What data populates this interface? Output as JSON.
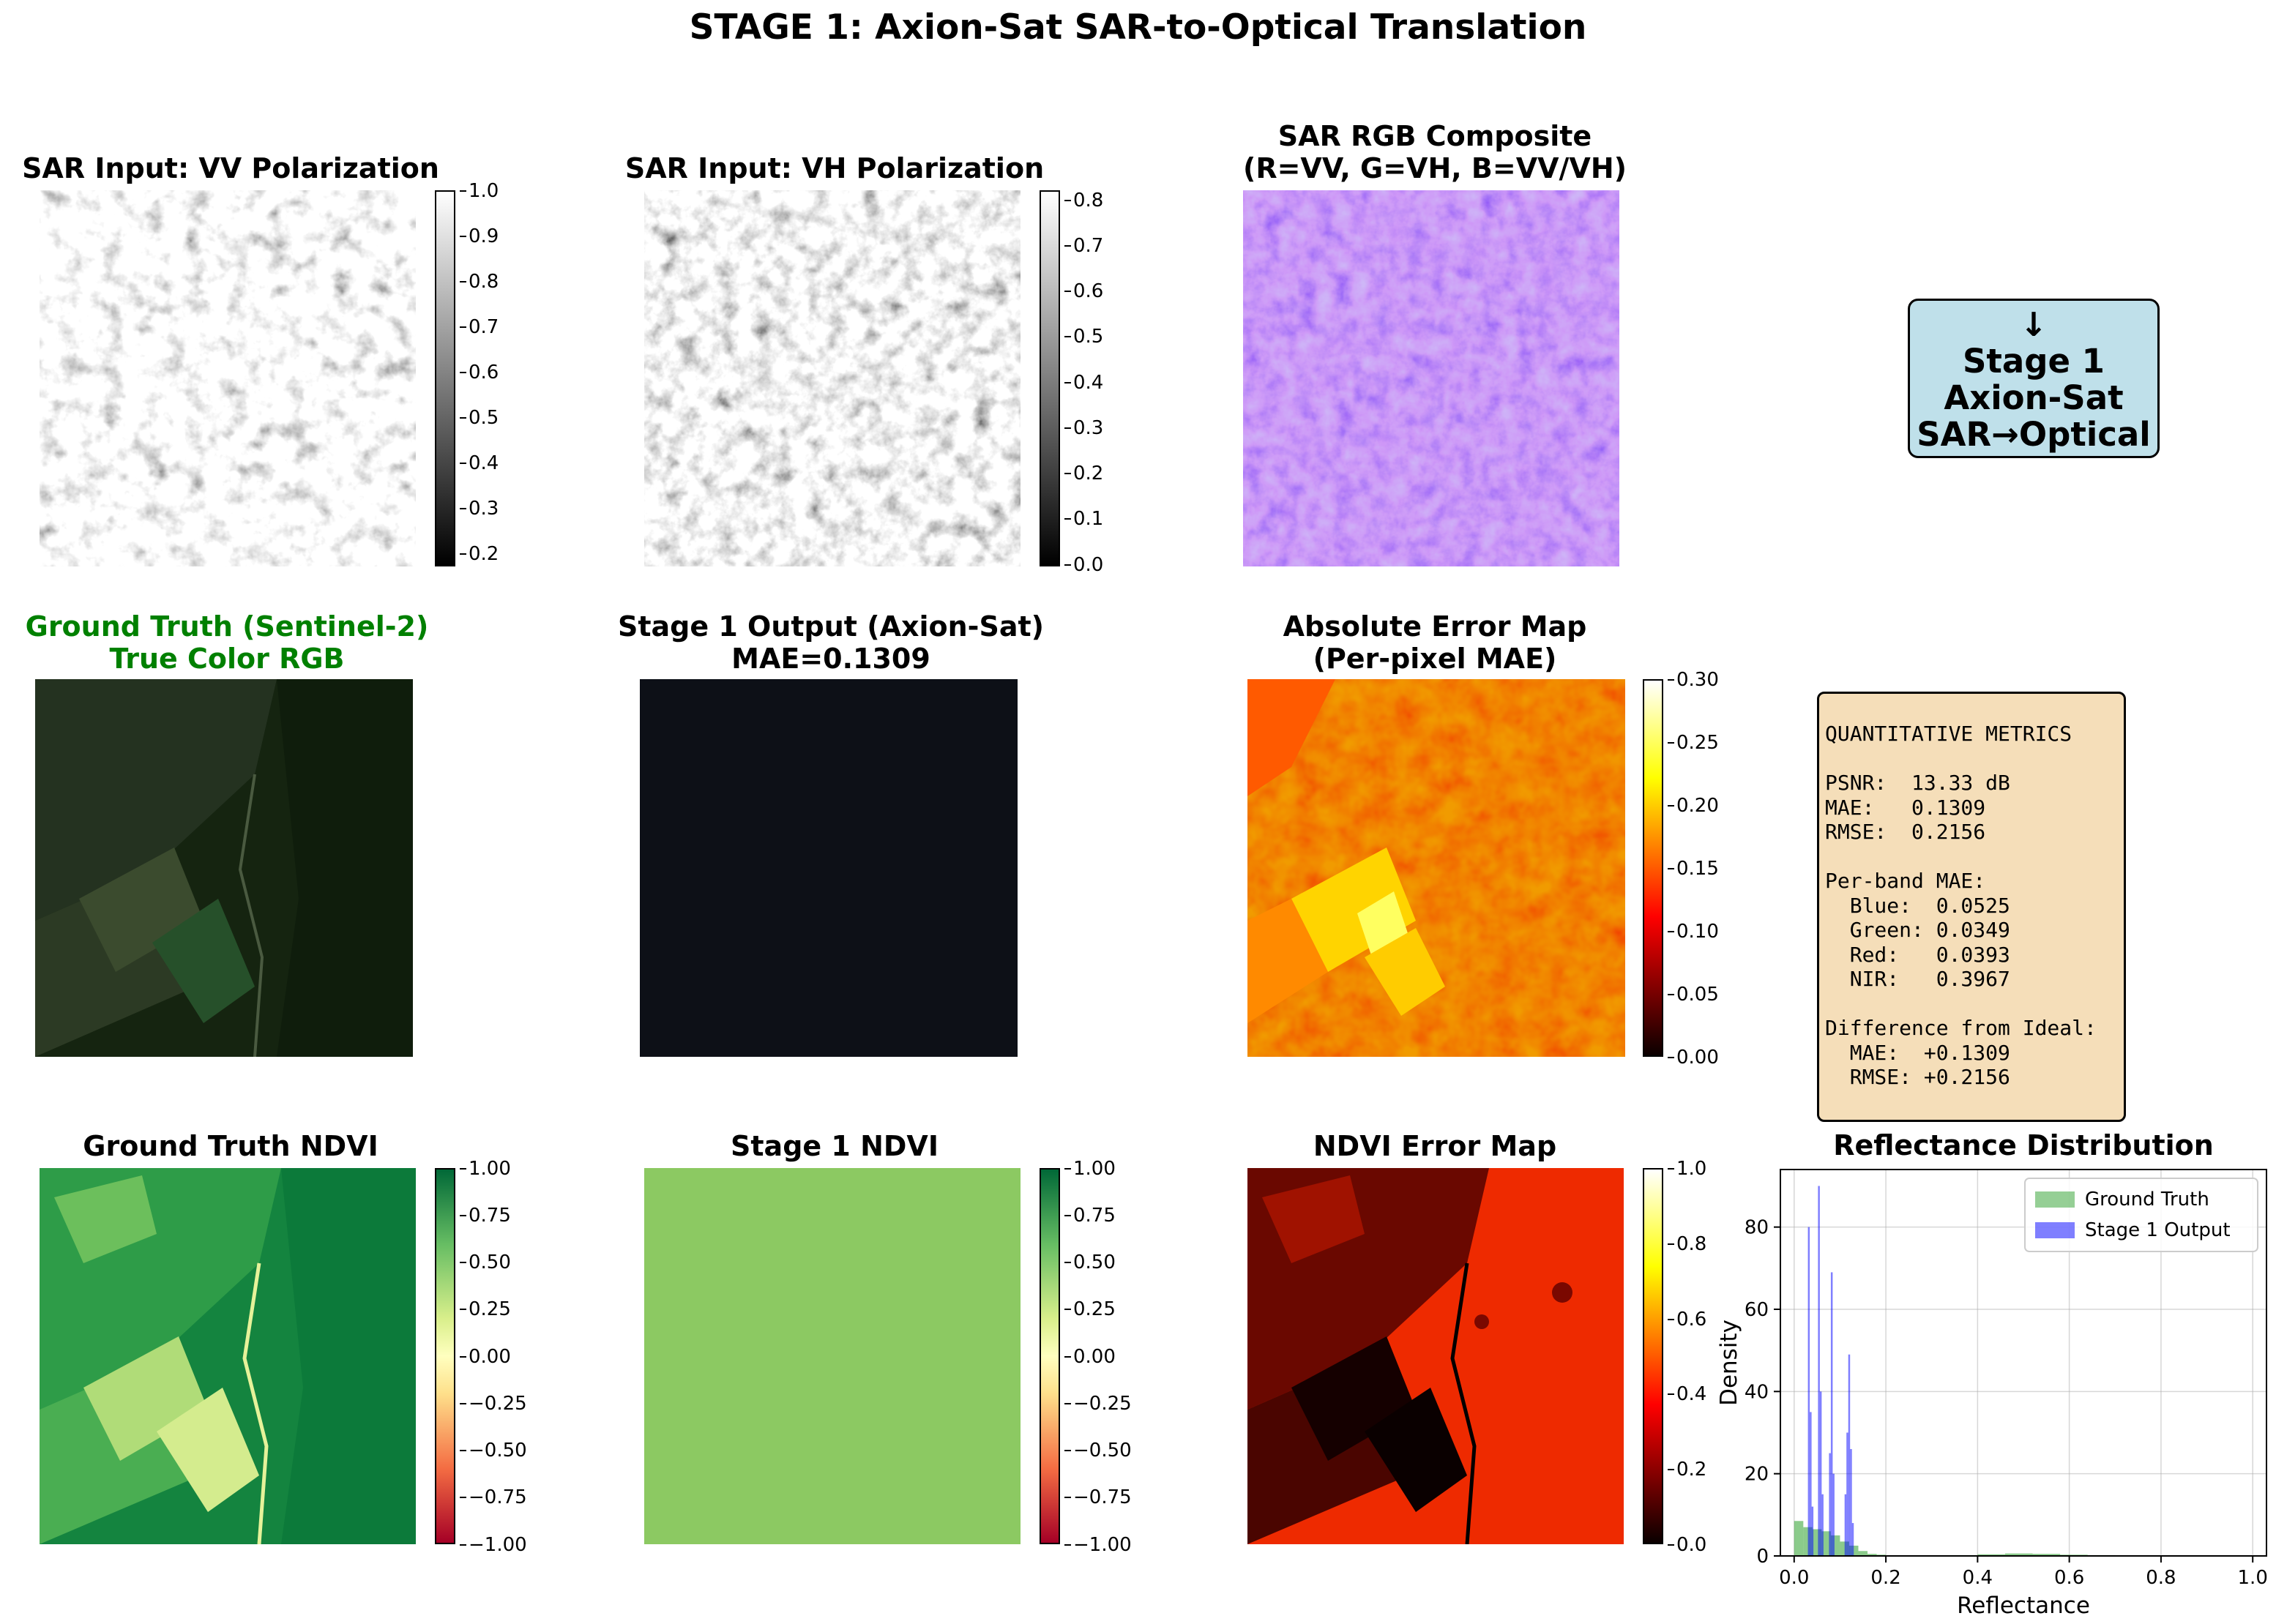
{
  "suptitle": "STAGE 1: Axion-Sat SAR-to-Optical Translation",
  "panels": {
    "vv": {
      "title": "SAR Input: VV Polarization",
      "colorbar_ticks": [
        "1.0",
        "0.9",
        "0.8",
        "0.7",
        "0.6",
        "0.5",
        "0.4",
        "0.3",
        "0.2"
      ],
      "colormap": "gray"
    },
    "vh": {
      "title": "SAR Input: VH Polarization",
      "colorbar_ticks": [
        "0.8",
        "0.7",
        "0.6",
        "0.5",
        "0.4",
        "0.3",
        "0.2",
        "0.1",
        "0.0"
      ],
      "colormap": "gray"
    },
    "rgb": {
      "title_line1": "SAR RGB Composite",
      "title_line2": "(R=VV, G=VH, B=VV/VH)"
    },
    "stage_box": {
      "line1": "↓",
      "line2": "Stage 1",
      "line3": "Axion-Sat",
      "line4": "SAR→Optical",
      "fill": "#bfe0ea"
    },
    "gt": {
      "title_line1": "Ground Truth (Sentinel-2)",
      "title_line2": "True Color RGB",
      "title_color": "#008000"
    },
    "stage1": {
      "title_line1": "Stage 1 Output (Axion-Sat)",
      "title_line2": "MAE=0.1309",
      "fill": "#0d1017"
    },
    "abs_err": {
      "title_line1": "Absolute Error Map",
      "title_line2": "(Per-pixel MAE)",
      "colorbar_ticks": [
        "0.30",
        "0.25",
        "0.20",
        "0.15",
        "0.10",
        "0.05",
        "0.00"
      ],
      "colormap": "hot"
    },
    "metrics": {
      "lines": [
        "QUANTITATIVE METRICS",
        "",
        "PSNR:  13.33 dB",
        "MAE:   0.1309",
        "RMSE:  0.2156",
        "",
        "Per-band MAE:",
        "  Blue:  0.0525",
        "  Green: 0.0349",
        "  Red:   0.0393",
        "  NIR:   0.3967",
        "",
        "Difference from Ideal:",
        "  MAE:  +0.1309",
        "  RMSE: +0.2156"
      ],
      "fill": "#f5deb9"
    },
    "gt_ndvi": {
      "title": "Ground Truth NDVI",
      "colorbar_ticks": [
        "1.00",
        "0.75",
        "0.50",
        "0.25",
        "0.00",
        "−0.25",
        "−0.50",
        "−0.75",
        "−1.00"
      ],
      "colormap": "RdYlGn"
    },
    "s1_ndvi": {
      "title": "Stage 1 NDVI",
      "colorbar_ticks": [
        "1.00",
        "0.75",
        "0.50",
        "0.25",
        "0.00",
        "−0.25",
        "−0.50",
        "−0.75",
        "−1.00"
      ],
      "colormap": "RdYlGn",
      "fill": "#8cc962"
    },
    "ndvi_err": {
      "title": "NDVI Error Map",
      "colorbar_ticks": [
        "1.0",
        "0.8",
        "0.6",
        "0.4",
        "0.2",
        "0.0"
      ],
      "colormap": "hot"
    }
  },
  "chart_data": {
    "type": "histogram",
    "title": "Reflectance Distribution",
    "xlabel": "Reflectance",
    "ylabel": "Density",
    "xlim": [
      -0.03,
      1.03
    ],
    "ylim": [
      0,
      94
    ],
    "xticks": [
      "0.0",
      "0.2",
      "0.4",
      "0.6",
      "0.8",
      "1.0"
    ],
    "yticks": [
      "0",
      "20",
      "40",
      "60",
      "80"
    ],
    "grid": true,
    "legend": "top-right",
    "series": [
      {
        "name": "Ground Truth",
        "color": "#2ca02c",
        "bins": [
          [
            0.0,
            0.02,
            8.5
          ],
          [
            0.02,
            0.04,
            7.0
          ],
          [
            0.04,
            0.06,
            6.5
          ],
          [
            0.06,
            0.08,
            6.0
          ],
          [
            0.08,
            0.1,
            5.0
          ],
          [
            0.1,
            0.12,
            3.5
          ],
          [
            0.12,
            0.14,
            2.5
          ],
          [
            0.14,
            0.16,
            1.2
          ],
          [
            0.16,
            0.18,
            0.5
          ],
          [
            0.18,
            0.2,
            0.3
          ],
          [
            0.34,
            0.4,
            0.2
          ],
          [
            0.4,
            0.46,
            0.4
          ],
          [
            0.46,
            0.52,
            0.6
          ],
          [
            0.52,
            0.58,
            0.5
          ],
          [
            0.58,
            0.64,
            0.3
          ],
          [
            0.64,
            0.7,
            0.2
          ]
        ]
      },
      {
        "name": "Stage 1 Output",
        "color": "#0000ff",
        "bins": [
          [
            0.03,
            0.034,
            80
          ],
          [
            0.034,
            0.038,
            35
          ],
          [
            0.038,
            0.042,
            12
          ],
          [
            0.052,
            0.056,
            90
          ],
          [
            0.056,
            0.06,
            40
          ],
          [
            0.06,
            0.064,
            15
          ],
          [
            0.076,
            0.08,
            25
          ],
          [
            0.08,
            0.084,
            69
          ],
          [
            0.084,
            0.088,
            20
          ],
          [
            0.11,
            0.114,
            15
          ],
          [
            0.114,
            0.118,
            30
          ],
          [
            0.118,
            0.122,
            49
          ],
          [
            0.122,
            0.126,
            26
          ],
          [
            0.126,
            0.13,
            8
          ]
        ]
      }
    ]
  }
}
